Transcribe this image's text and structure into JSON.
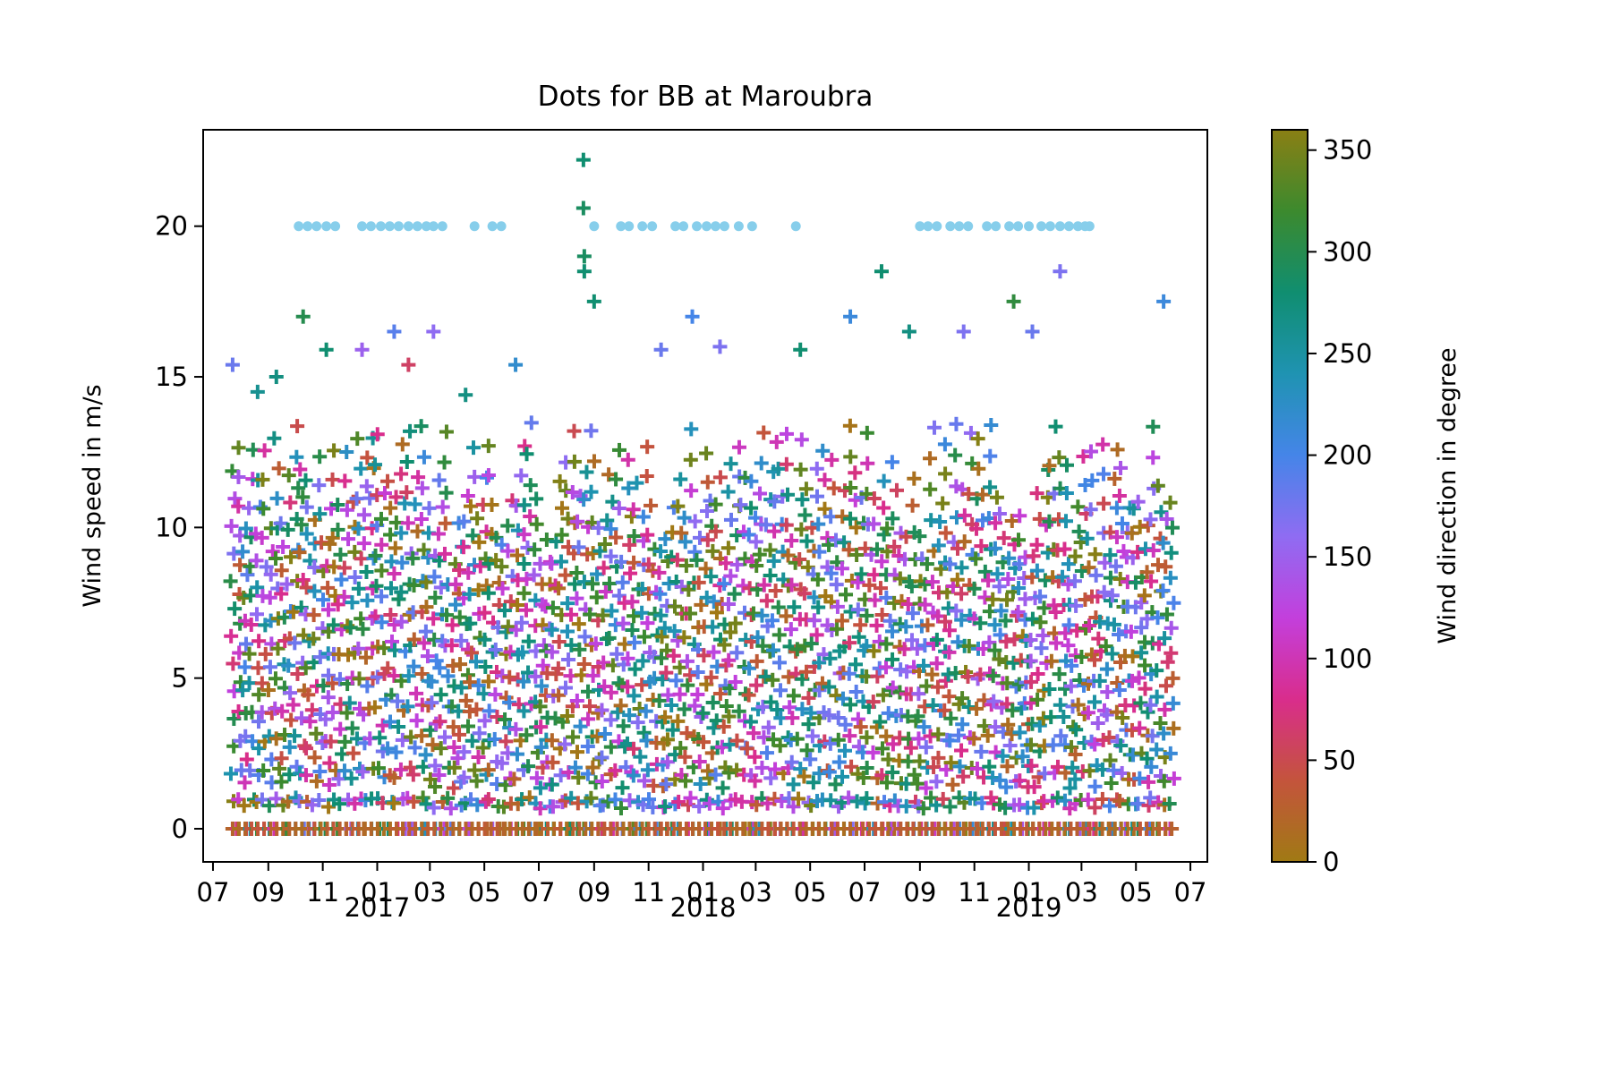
{
  "chart_data": {
    "type": "scatter",
    "title": "Dots for BB at Maroubra",
    "xlabel": "",
    "ylabel": "Wind speed in m/s",
    "x_range": [
      "2016-06-20",
      "2019-07-20"
    ],
    "ylim": [
      -1.1,
      23.2
    ],
    "yticks": [
      0,
      5,
      10,
      15,
      20
    ],
    "xtick_labels": [
      {
        "date": "2016-07-01",
        "label": "07"
      },
      {
        "date": "2016-09-01",
        "label": "09"
      },
      {
        "date": "2016-11-01",
        "label": "11"
      },
      {
        "date": "2017-01-01",
        "label": "01"
      },
      {
        "date": "2017-03-01",
        "label": "03"
      },
      {
        "date": "2017-05-01",
        "label": "05"
      },
      {
        "date": "2017-07-01",
        "label": "07"
      },
      {
        "date": "2017-09-01",
        "label": "09"
      },
      {
        "date": "2017-11-01",
        "label": "11"
      },
      {
        "date": "2018-01-01",
        "label": "01"
      },
      {
        "date": "2018-03-01",
        "label": "03"
      },
      {
        "date": "2018-05-01",
        "label": "05"
      },
      {
        "date": "2018-07-01",
        "label": "07"
      },
      {
        "date": "2018-09-01",
        "label": "09"
      },
      {
        "date": "2018-11-01",
        "label": "11"
      },
      {
        "date": "2019-01-01",
        "label": "01"
      },
      {
        "date": "2019-03-01",
        "label": "03"
      },
      {
        "date": "2019-05-01",
        "label": "05"
      },
      {
        "date": "2019-07-01",
        "label": "07"
      }
    ],
    "year_labels": [
      {
        "date": "2017-01-01",
        "label": "2017"
      },
      {
        "date": "2018-01-01",
        "label": "2018"
      },
      {
        "date": "2019-01-01",
        "label": "2019"
      }
    ],
    "grid": false,
    "legend": "none",
    "colorbar": {
      "label": "Wind direction in degree",
      "range": [
        0,
        360
      ],
      "ticks": [
        0,
        50,
        100,
        150,
        200,
        250,
        300,
        350
      ],
      "colormap": [
        "#a07a14",
        "#c4543c",
        "#d92d8c",
        "#c33fdc",
        "#8f6cf2",
        "#4585e8",
        "#1f93b2",
        "#108e70",
        "#3c8a2e",
        "#8a7f14"
      ]
    },
    "series": [
      {
        "name": "wind",
        "marker": "plus",
        "x_start": "2016-07-23",
        "x_end": "2019-06-10",
        "y_min": 0,
        "y_max": 22.2,
        "typical_max": 13.5,
        "points_sample": [
          {
            "x": "2016-07-23",
            "y": 15.4,
            "dir": 180
          },
          {
            "x": "2016-08-20",
            "y": 14.5,
            "dir": 260
          },
          {
            "x": "2016-09-10",
            "y": 15.0,
            "dir": 270
          },
          {
            "x": "2016-10-10",
            "y": 17.0,
            "dir": 300
          },
          {
            "x": "2016-11-05",
            "y": 15.9,
            "dir": 280
          },
          {
            "x": "2016-12-15",
            "y": 15.9,
            "dir": 150
          },
          {
            "x": "2017-01-20",
            "y": 16.5,
            "dir": 190
          },
          {
            "x": "2017-02-05",
            "y": 15.4,
            "dir": 60
          },
          {
            "x": "2017-03-05",
            "y": 16.5,
            "dir": 160
          },
          {
            "x": "2017-04-10",
            "y": 14.4,
            "dir": 270
          },
          {
            "x": "2017-06-05",
            "y": 15.4,
            "dir": 220
          },
          {
            "x": "2017-08-20",
            "y": 22.2,
            "dir": 280
          },
          {
            "x": "2017-08-20",
            "y": 20.6,
            "dir": 290
          },
          {
            "x": "2017-08-21",
            "y": 19.0,
            "dir": 290
          },
          {
            "x": "2017-08-21",
            "y": 18.5,
            "dir": 280
          },
          {
            "x": "2017-09-01",
            "y": 17.5,
            "dir": 280
          },
          {
            "x": "2017-11-15",
            "y": 15.9,
            "dir": 180
          },
          {
            "x": "2017-12-20",
            "y": 17.0,
            "dir": 200
          },
          {
            "x": "2018-01-20",
            "y": 16.0,
            "dir": 170
          },
          {
            "x": "2018-04-20",
            "y": 15.9,
            "dir": 280
          },
          {
            "x": "2018-06-15",
            "y": 17.0,
            "dir": 210
          },
          {
            "x": "2018-07-20",
            "y": 18.5,
            "dir": 280
          },
          {
            "x": "2018-08-20",
            "y": 16.5,
            "dir": 270
          },
          {
            "x": "2018-10-20",
            "y": 16.5,
            "dir": 170
          },
          {
            "x": "2018-12-15",
            "y": 17.5,
            "dir": 310
          },
          {
            "x": "2019-01-05",
            "y": 16.5,
            "dir": 180
          },
          {
            "x": "2019-02-05",
            "y": 18.5,
            "dir": 170
          },
          {
            "x": "2019-06-01",
            "y": 17.5,
            "dir": 210
          }
        ]
      },
      {
        "name": "dots",
        "marker": "dot",
        "color": "#87ceeb",
        "y": 20,
        "x": [
          "2016-10-05",
          "2016-10-15",
          "2016-10-25",
          "2016-11-05",
          "2016-11-15",
          "2016-12-15",
          "2016-12-25",
          "2017-01-05",
          "2017-01-15",
          "2017-01-25",
          "2017-02-05",
          "2017-02-15",
          "2017-02-25",
          "2017-03-05",
          "2017-03-15",
          "2017-04-20",
          "2017-05-10",
          "2017-05-20",
          "2017-09-01",
          "2017-10-01",
          "2017-10-10",
          "2017-10-25",
          "2017-11-05",
          "2017-12-01",
          "2017-12-10",
          "2017-12-25",
          "2018-01-05",
          "2018-01-15",
          "2018-01-25",
          "2018-02-10",
          "2018-02-25",
          "2018-04-15",
          "2018-09-01",
          "2018-09-10",
          "2018-09-20",
          "2018-10-05",
          "2018-10-15",
          "2018-10-25",
          "2018-11-15",
          "2018-11-25",
          "2018-12-10",
          "2018-12-20",
          "2019-01-01",
          "2019-01-15",
          "2019-01-25",
          "2019-02-05",
          "2019-02-15",
          "2019-02-25",
          "2019-03-05",
          "2019-03-10"
        ]
      }
    ]
  }
}
